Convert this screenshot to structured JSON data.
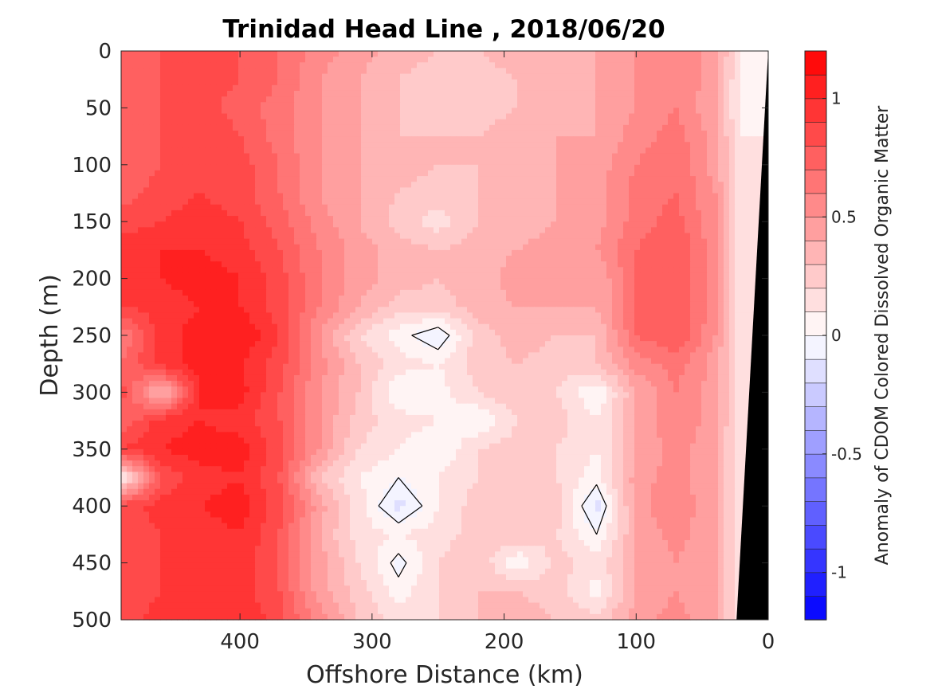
{
  "chart_data": {
    "type": "heatmap",
    "title": "Trinidad Head Line , 2018/06/20",
    "xlabel": "Offshore Distance (km)",
    "ylabel": "Depth (m)",
    "colorbar_label": "Anomaly of CDOM Colored Dissolved Organic Matter",
    "xlim": [
      490,
      0
    ],
    "ylim": [
      0,
      500
    ],
    "x_ticks": [
      400,
      300,
      200,
      100,
      0
    ],
    "y_ticks": [
      0,
      50,
      100,
      150,
      200,
      250,
      300,
      350,
      400,
      450,
      500
    ],
    "clim": [
      -1.2,
      1.2
    ],
    "colorbar_ticks": [
      1,
      0.5,
      0,
      -0.5,
      -1
    ],
    "colormap": {
      "positive": "#ff0000",
      "zero": "#ffffff",
      "negative": "#0000ff"
    },
    "colorbar_levels": 24,
    "depth_grid": [
      0,
      25,
      50,
      75,
      100,
      125,
      150,
      175,
      200,
      225,
      250,
      275,
      300,
      325,
      350,
      375,
      400,
      425,
      450,
      475,
      500
    ],
    "distance_grid": [
      490,
      460,
      430,
      400,
      370,
      340,
      310,
      280,
      250,
      220,
      190,
      160,
      130,
      100,
      70,
      40,
      20
    ],
    "values": [
      [
        0.75,
        0.8,
        0.85,
        0.8,
        0.7,
        0.55,
        0.45,
        0.35,
        0.3,
        0.3,
        0.35,
        0.4,
        0.4,
        0.5,
        0.6,
        0.45,
        0.1
      ],
      [
        0.75,
        0.8,
        0.85,
        0.8,
        0.7,
        0.5,
        0.4,
        0.3,
        0.25,
        0.25,
        0.3,
        0.35,
        0.4,
        0.5,
        0.6,
        0.45,
        0.05
      ],
      [
        0.7,
        0.8,
        0.85,
        0.75,
        0.65,
        0.5,
        0.4,
        0.3,
        0.25,
        0.25,
        0.3,
        0.35,
        0.4,
        0.5,
        0.6,
        0.4,
        0.05
      ],
      [
        0.7,
        0.8,
        0.9,
        0.8,
        0.65,
        0.5,
        0.4,
        0.3,
        0.3,
        0.3,
        0.35,
        0.4,
        0.4,
        0.55,
        0.65,
        0.45,
        0.1
      ],
      [
        0.7,
        0.8,
        0.9,
        0.85,
        0.7,
        0.5,
        0.4,
        0.35,
        0.3,
        0.3,
        0.35,
        0.4,
        0.45,
        0.6,
        0.7,
        0.45,
        0.1
      ],
      [
        0.75,
        0.85,
        0.9,
        0.85,
        0.7,
        0.5,
        0.4,
        0.3,
        0.25,
        0.3,
        0.35,
        0.4,
        0.45,
        0.65,
        0.7,
        0.5,
        0.1
      ],
      [
        0.85,
        0.9,
        0.95,
        0.9,
        0.75,
        0.55,
        0.4,
        0.25,
        0.15,
        0.3,
        0.35,
        0.4,
        0.45,
        0.65,
        0.75,
        0.5,
        0.1
      ],
      [
        0.95,
        1.0,
        1.0,
        0.95,
        0.8,
        0.6,
        0.45,
        0.35,
        0.3,
        0.35,
        0.4,
        0.45,
        0.5,
        0.7,
        0.8,
        0.55,
        0.1
      ],
      [
        0.95,
        1.0,
        1.05,
        1.0,
        0.85,
        0.6,
        0.45,
        0.35,
        0.3,
        0.35,
        0.45,
        0.4,
        0.4,
        0.7,
        0.8,
        0.55,
        0.1
      ],
      [
        0.9,
        0.95,
        1.0,
        1.0,
        0.85,
        0.6,
        0.4,
        0.25,
        0.25,
        0.35,
        0.4,
        0.4,
        0.4,
        0.7,
        0.8,
        0.55,
        0.1
      ],
      [
        0.6,
        0.95,
        1.05,
        1.1,
        0.9,
        0.5,
        0.2,
        0.05,
        -0.1,
        0.25,
        0.35,
        0.3,
        0.3,
        0.7,
        0.8,
        0.5,
        0.1
      ],
      [
        0.7,
        0.95,
        1.05,
        1.0,
        0.85,
        0.55,
        0.3,
        0.15,
        0.1,
        0.25,
        0.3,
        0.25,
        0.3,
        0.55,
        0.65,
        0.45,
        0.1
      ],
      [
        0.85,
        0.3,
        1.0,
        1.05,
        0.8,
        0.5,
        0.3,
        0.0,
        0.05,
        0.2,
        0.3,
        0.2,
        0.0,
        0.4,
        0.6,
        0.45,
        0.1
      ],
      [
        0.7,
        0.95,
        1.0,
        0.95,
        0.8,
        0.5,
        0.25,
        0.15,
        0.1,
        0.0,
        0.2,
        0.25,
        0.1,
        0.4,
        0.6,
        0.45,
        0.1
      ],
      [
        0.9,
        1.0,
        1.05,
        1.05,
        0.85,
        0.5,
        0.2,
        0.1,
        0.0,
        0.2,
        0.25,
        0.2,
        0.1,
        0.4,
        0.55,
        0.4,
        0.1
      ],
      [
        0.05,
        0.8,
        0.95,
        1.0,
        0.8,
        0.3,
        0.1,
        0.0,
        0.1,
        0.2,
        0.25,
        0.2,
        0.05,
        0.45,
        0.55,
        0.4,
        0.1
      ],
      [
        0.85,
        0.95,
        1.0,
        1.05,
        0.85,
        0.45,
        0.15,
        -0.15,
        0.1,
        0.25,
        0.3,
        0.25,
        -0.15,
        0.45,
        0.6,
        0.4,
        0.1
      ],
      [
        0.8,
        0.9,
        0.95,
        1.0,
        0.8,
        0.4,
        0.15,
        0.1,
        0.15,
        0.25,
        0.3,
        0.2,
        0.0,
        0.4,
        0.55,
        0.4,
        0.1
      ],
      [
        0.8,
        0.9,
        0.95,
        0.95,
        0.8,
        0.45,
        0.2,
        -0.05,
        0.2,
        0.3,
        0.0,
        0.25,
        0.15,
        0.4,
        0.5,
        0.4,
        0.1
      ],
      [
        0.8,
        0.9,
        0.95,
        0.95,
        0.8,
        0.45,
        0.25,
        0.05,
        0.2,
        0.3,
        0.3,
        0.25,
        0.05,
        0.4,
        0.5,
        0.4,
        0.1
      ],
      [
        0.85,
        0.95,
        1.0,
        1.0,
        0.85,
        0.55,
        0.3,
        0.15,
        0.2,
        0.3,
        0.35,
        0.3,
        0.25,
        0.45,
        0.55,
        0.4,
        0.1
      ]
    ],
    "contour_level": 0,
    "bathymetry": {
      "color": "#000000",
      "distance_at_surface_km": 0,
      "distance_at_500m_km": 24
    }
  }
}
